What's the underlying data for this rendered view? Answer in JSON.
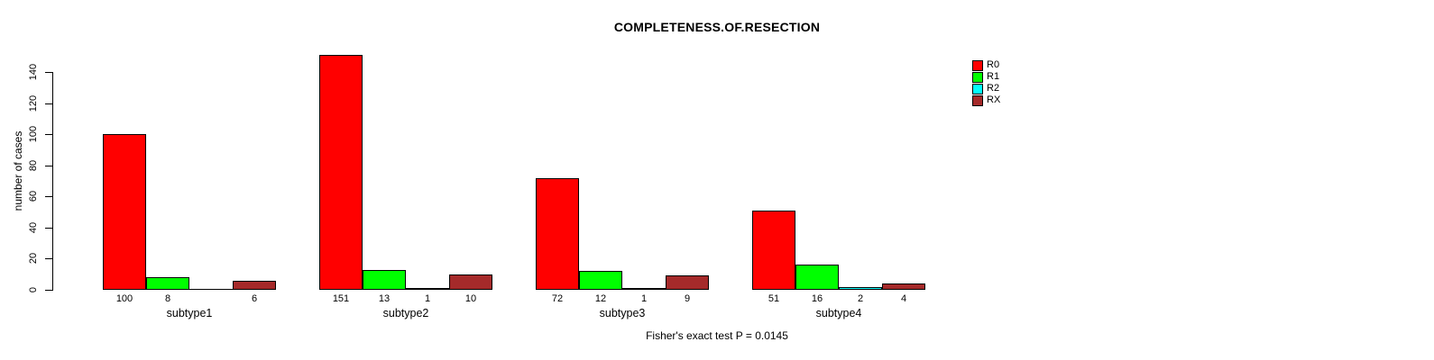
{
  "figure": {
    "title": "COMPLETENESS.OF.RESECTION",
    "annotation": "Fisher's exact test P = 0.0145"
  },
  "chart_data": {
    "type": "bar",
    "title": "COMPLETENESS.OF.RESECTION",
    "xlabel": "",
    "ylabel": "number of cases",
    "categories": [
      "subtype1",
      "subtype2",
      "subtype3",
      "subtype4"
    ],
    "series": [
      {
        "name": "R0",
        "color": "#FF0000",
        "values": [
          100,
          151,
          72,
          51
        ]
      },
      {
        "name": "R1",
        "color": "#00FF00",
        "values": [
          8,
          13,
          12,
          16
        ]
      },
      {
        "name": "R2",
        "color": "#00FFFF",
        "values": [
          0,
          1,
          1,
          2
        ]
      },
      {
        "name": "RX",
        "color": "#A52A2A",
        "values": [
          6,
          10,
          9,
          4
        ]
      }
    ],
    "bar_value_labels": [
      [
        "100",
        "8",
        "",
        "6"
      ],
      [
        "151",
        "13",
        "1",
        "10"
      ],
      [
        "72",
        "12",
        "1",
        "9"
      ],
      [
        "51",
        "16",
        "2",
        "4"
      ]
    ],
    "y_ticks": [
      0,
      20,
      40,
      60,
      80,
      100,
      120,
      140
    ],
    "ylim": [
      0,
      151
    ],
    "grid": false,
    "legend": {
      "position": "top-right",
      "entries": [
        "R0",
        "R1",
        "R2",
        "RX"
      ]
    },
    "annotation": "Fisher's exact test P = 0.0145"
  }
}
